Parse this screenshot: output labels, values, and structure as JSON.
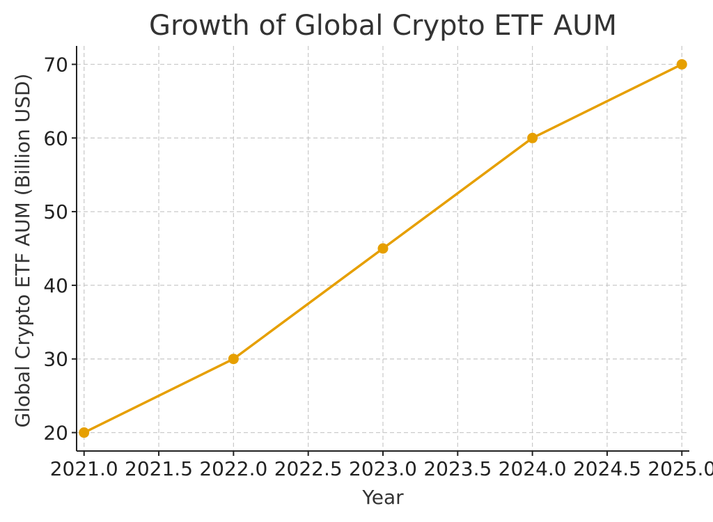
{
  "chart_data": {
    "type": "line",
    "title": "Growth of Global Crypto ETF AUM",
    "xlabel": "Year",
    "ylabel": "Global Crypto ETF AUM (Billion USD)",
    "x": [
      2021,
      2022,
      2023,
      2024,
      2025
    ],
    "series": [
      {
        "values": [
          20,
          30,
          45,
          60,
          70
        ],
        "color": "#E69F00"
      }
    ],
    "xlim": [
      2020.95,
      2025.05
    ],
    "ylim": [
      17.5,
      72.5
    ],
    "x_ticks": [
      2021.0,
      2021.5,
      2022.0,
      2022.5,
      2023.0,
      2023.5,
      2024.0,
      2024.5,
      2025.0
    ],
    "x_tick_labels": [
      "2021.0",
      "2021.5",
      "2022.0",
      "2022.5",
      "2023.0",
      "2023.5",
      "2024.0",
      "2024.5",
      "2025.0"
    ],
    "y_ticks": [
      20,
      30,
      40,
      50,
      60,
      70
    ],
    "y_tick_labels": [
      "20",
      "30",
      "40",
      "50",
      "60",
      "70"
    ],
    "grid": true,
    "marker": "circle"
  }
}
